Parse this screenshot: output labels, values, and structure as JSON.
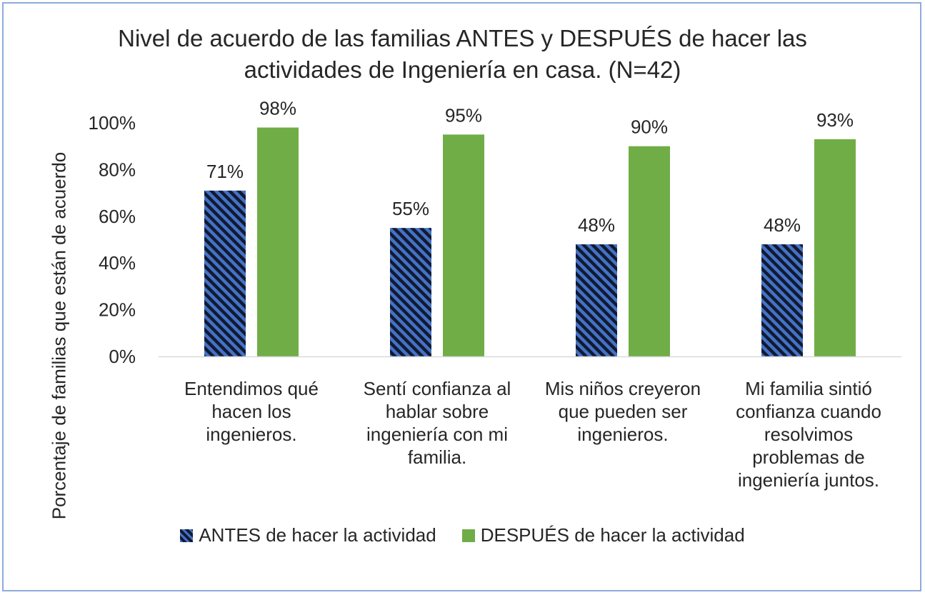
{
  "chart_data": {
    "type": "bar",
    "title_lines": [
      "Nivel de acuerdo de las familias ANTES y DESPUÉS de hacer las",
      "actividades de Ingeniería en casa. (N=42)"
    ],
    "ylabel": "Porcentaje de familias que están de acuerdo",
    "xlabel": "",
    "ylim": [
      0,
      100
    ],
    "yticks": [
      "0%",
      "20%",
      "40%",
      "60%",
      "80%",
      "100%"
    ],
    "categories": [
      [
        "Entendimos qué",
        "hacen los",
        "ingenieros."
      ],
      [
        "Sentí confianza al",
        "hablar sobre",
        "ingeniería con mi",
        "familia."
      ],
      [
        "Mis niños creyeron",
        "que pueden ser",
        "ingenieros."
      ],
      [
        "Mi familia sintió",
        "confianza cuando",
        "resolvimos",
        "problemas de",
        "ingeniería juntos."
      ]
    ],
    "series": [
      {
        "name": "ANTES de hacer la actividad",
        "values": [
          71,
          55,
          48,
          48
        ],
        "labels": [
          "71%",
          "55%",
          "48%",
          "48%"
        ],
        "color": "#4472c4",
        "pattern": "dark-diagonal-stripes"
      },
      {
        "name": "DESPUÉS de hacer la actividad",
        "values": [
          98,
          95,
          90,
          93
        ],
        "labels": [
          "98%",
          "95%",
          "90%",
          "93%"
        ],
        "color": "#70ad47",
        "pattern": "solid"
      }
    ],
    "grid": false,
    "legend_position": "bottom"
  }
}
